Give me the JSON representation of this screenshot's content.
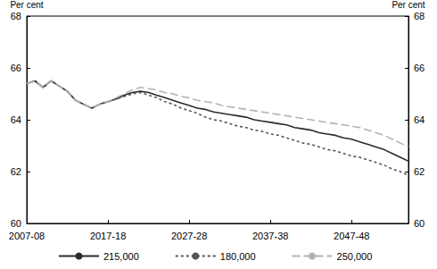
{
  "chart_data": {
    "type": "line",
    "ylabel": "Per cent",
    "y2label": "Per cent",
    "categories": [
      "2007-08",
      null,
      null,
      null,
      null,
      null,
      null,
      null,
      null,
      null,
      "2017-18",
      null,
      null,
      null,
      null,
      null,
      null,
      null,
      null,
      null,
      "2027-28",
      null,
      null,
      null,
      null,
      null,
      null,
      null,
      null,
      null,
      "2037-38",
      null,
      null,
      null,
      null,
      null,
      null,
      null,
      null,
      null,
      "2047-48",
      null,
      null,
      null,
      null,
      null,
      null,
      null
    ],
    "ylim": [
      60,
      68
    ],
    "yticks": [
      60,
      62,
      64,
      66,
      68
    ],
    "y2lim": [
      60,
      68
    ],
    "y2ticks": [
      60,
      62,
      64,
      66,
      68
    ],
    "grid": false,
    "legend": "bottom",
    "series": [
      {
        "name": "215,000",
        "color": "#2b2b2b",
        "line_style": "solid",
        "values": [
          65.4,
          65.5,
          65.25,
          65.5,
          65.3,
          65.1,
          64.75,
          64.6,
          64.45,
          64.6,
          64.7,
          64.8,
          64.95,
          65.05,
          65.1,
          65.05,
          64.95,
          64.85,
          64.75,
          64.65,
          64.55,
          64.45,
          64.4,
          64.3,
          64.25,
          64.2,
          64.15,
          64.1,
          64.0,
          63.95,
          63.9,
          63.85,
          63.8,
          63.7,
          63.65,
          63.6,
          63.5,
          63.45,
          63.4,
          63.3,
          63.25,
          63.15,
          63.05,
          62.95,
          62.85,
          62.7,
          62.55,
          62.4
        ]
      },
      {
        "name": "180,000",
        "color": "#555555",
        "line_style": "dotted",
        "values": [
          65.4,
          65.5,
          65.25,
          65.5,
          65.3,
          65.1,
          64.75,
          64.6,
          64.45,
          64.6,
          64.7,
          64.8,
          64.9,
          65.0,
          65.05,
          64.95,
          64.85,
          64.7,
          64.6,
          64.45,
          64.35,
          64.25,
          64.1,
          64.0,
          63.95,
          63.85,
          63.75,
          63.7,
          63.6,
          63.55,
          63.45,
          63.4,
          63.3,
          63.2,
          63.1,
          63.05,
          62.95,
          62.85,
          62.8,
          62.7,
          62.6,
          62.55,
          62.45,
          62.35,
          62.25,
          62.1,
          62.0,
          61.85
        ]
      },
      {
        "name": "250,000",
        "color": "#b3b3b3",
        "line_style": "dashed",
        "values": [
          65.4,
          65.5,
          65.25,
          65.5,
          65.3,
          65.1,
          64.75,
          64.6,
          64.45,
          64.6,
          64.7,
          64.85,
          65.0,
          65.15,
          65.25,
          65.2,
          65.15,
          65.05,
          65.0,
          64.9,
          64.85,
          64.75,
          64.7,
          64.65,
          64.55,
          64.5,
          64.45,
          64.4,
          64.35,
          64.3,
          64.25,
          64.2,
          64.15,
          64.1,
          64.05,
          64.0,
          63.95,
          63.9,
          63.85,
          63.8,
          63.75,
          63.7,
          63.6,
          63.5,
          63.4,
          63.25,
          63.1,
          62.95
        ]
      }
    ]
  }
}
